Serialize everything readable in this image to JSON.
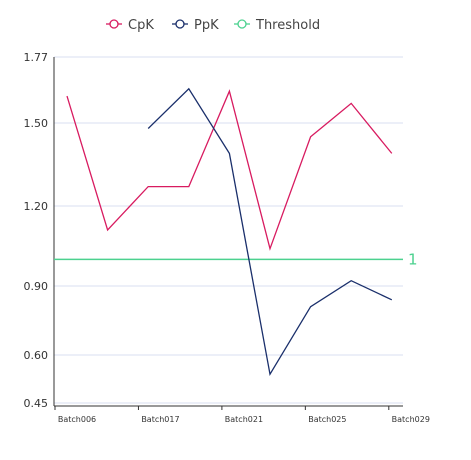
{
  "chart_data": {
    "type": "line",
    "categories": [
      "Batch006",
      "",
      "Batch017",
      "",
      "Batch021",
      "",
      "Batch025",
      "",
      "Batch029"
    ],
    "x_tick_labels": [
      "Batch006",
      "Batch017",
      "Batch021",
      "Batch025",
      "Batch029"
    ],
    "y_tick_labels": [
      "0.45",
      "0.60",
      "0.90",
      "1.20",
      "1.50",
      "1.77"
    ],
    "ylim": [
      0.45,
      1.77
    ],
    "grid": "horizontal",
    "legend_position": "top-center",
    "series": [
      {
        "name": "CpK",
        "color": "#d81b60",
        "values": [
          1.61,
          1.11,
          1.27,
          1.27,
          1.63,
          1.04,
          1.45,
          1.58,
          1.39
        ]
      },
      {
        "name": "PpK",
        "color": "#1a2f6b",
        "values": [
          null,
          null,
          1.48,
          1.64,
          1.39,
          0.54,
          0.81,
          0.92,
          0.84
        ]
      }
    ],
    "threshold": {
      "name": "Threshold",
      "value": 1,
      "label": "1",
      "color": "#4cd18f"
    }
  }
}
